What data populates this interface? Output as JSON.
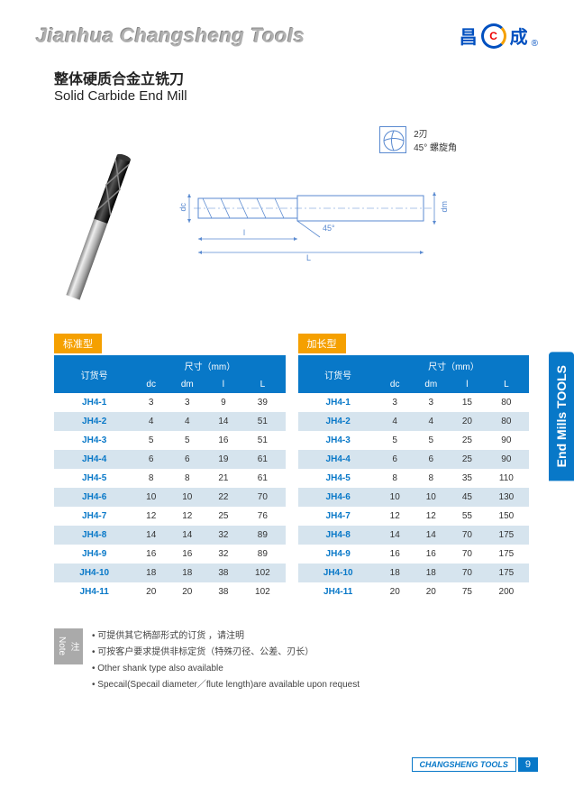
{
  "header": {
    "brand_title": "Jianhua Changsheng Tools",
    "logo_left": "昌",
    "logo_right": "成",
    "logo_inner": "C",
    "logo_r": "®"
  },
  "title": {
    "cn": "整体硬质合金立铣刀",
    "en": "Solid Carbide End Mill"
  },
  "diagram": {
    "flute_count": "2刃",
    "helix": "45° 螺旋角",
    "dc": "dc",
    "dm": "dm",
    "angle": "45°",
    "l_small": "l",
    "l_big": "L"
  },
  "table1": {
    "label": "标准型",
    "header_group": "尺寸（mm）",
    "col_order": "订货号",
    "cols": [
      "dc",
      "dm",
      "l",
      "L"
    ],
    "rows": [
      [
        "JH4-1",
        "3",
        "3",
        "9",
        "39"
      ],
      [
        "JH4-2",
        "4",
        "4",
        "14",
        "51"
      ],
      [
        "JH4-3",
        "5",
        "5",
        "16",
        "51"
      ],
      [
        "JH4-4",
        "6",
        "6",
        "19",
        "61"
      ],
      [
        "JH4-5",
        "8",
        "8",
        "21",
        "61"
      ],
      [
        "JH4-6",
        "10",
        "10",
        "22",
        "70"
      ],
      [
        "JH4-7",
        "12",
        "12",
        "25",
        "76"
      ],
      [
        "JH4-8",
        "14",
        "14",
        "32",
        "89"
      ],
      [
        "JH4-9",
        "16",
        "16",
        "32",
        "89"
      ],
      [
        "JH4-10",
        "18",
        "18",
        "38",
        "102"
      ],
      [
        "JH4-11",
        "20",
        "20",
        "38",
        "102"
      ]
    ]
  },
  "table2": {
    "label": "加长型",
    "header_group": "尺寸（mm）",
    "col_order": "订货号",
    "cols": [
      "dc",
      "dm",
      "l",
      "L"
    ],
    "rows": [
      [
        "JH4-1",
        "3",
        "3",
        "15",
        "80"
      ],
      [
        "JH4-2",
        "4",
        "4",
        "20",
        "80"
      ],
      [
        "JH4-3",
        "5",
        "5",
        "25",
        "90"
      ],
      [
        "JH4-4",
        "6",
        "6",
        "25",
        "90"
      ],
      [
        "JH4-5",
        "8",
        "8",
        "35",
        "110"
      ],
      [
        "JH4-6",
        "10",
        "10",
        "45",
        "130"
      ],
      [
        "JH4-7",
        "12",
        "12",
        "55",
        "150"
      ],
      [
        "JH4-8",
        "14",
        "14",
        "70",
        "175"
      ],
      [
        "JH4-9",
        "16",
        "16",
        "70",
        "175"
      ],
      [
        "JH4-10",
        "18",
        "18",
        "70",
        "175"
      ],
      [
        "JH4-11",
        "20",
        "20",
        "75",
        "200"
      ]
    ]
  },
  "notes": {
    "badge": "注Note",
    "items": [
      "可提供其它柄部形式的订货 ，请注明",
      "可按客户要求提供非标定货（特殊刃径、公差、刃长）",
      "Other shank type also available",
      "Specail(Specail diameter／flute length)are available upon request"
    ]
  },
  "side_tab": "End Mills TOOLS",
  "footer": {
    "brand": "CHANGSHENG TOOLS",
    "page": "9"
  }
}
